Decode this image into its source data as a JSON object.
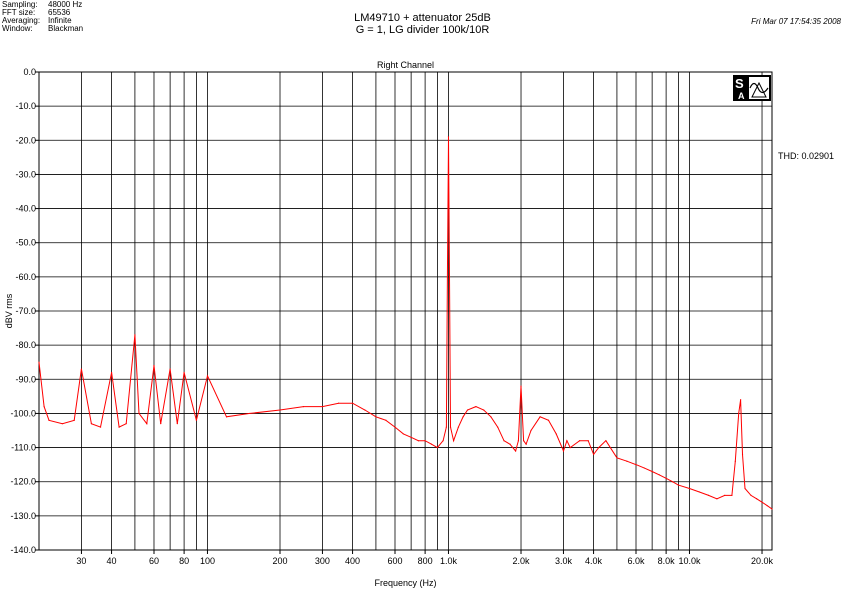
{
  "header": {
    "meta": [
      {
        "label": "Sampling:",
        "value": "48000 Hz"
      },
      {
        "label": "FFT size:",
        "value": "65536"
      },
      {
        "label": "Averaging:",
        "value": "Infinite"
      },
      {
        "label": "Window:",
        "value": "Blackman"
      }
    ],
    "title_line1": "LM49710 + attenuator 25dB",
    "title_line2": "G = 1, LG divider 100k/10R",
    "datetime": "Fri Mar 07 17:54:35 2008"
  },
  "thd_label": "THD: 0.02901",
  "logo": {
    "icon": "sa-logo-icon",
    "letters": "SA"
  },
  "colors": {
    "trace": "#ff0000",
    "grid": "#000000",
    "background": "#ffffff"
  },
  "chart_data": {
    "type": "line",
    "title": "Right Channel",
    "xlabel": "Frequency (Hz)",
    "ylabel": "dBV rms",
    "x_scale": "log",
    "xlim": [
      20,
      22000
    ],
    "ylim": [
      -140,
      0
    ],
    "grid": true,
    "y_ticks": [
      0,
      -10,
      -20,
      -30,
      -40,
      -50,
      -60,
      -70,
      -80,
      -90,
      -100,
      -110,
      -120,
      -130,
      -140
    ],
    "y_tick_labels": [
      "0.0",
      "-10.0",
      "-20.0",
      "-30.0",
      "-40.0",
      "-50.0",
      "-60.0",
      "-70.0",
      "-80.0",
      "-90.0",
      "-100.0",
      "-110.0",
      "-120.0",
      "-130.0",
      "-140.0"
    ],
    "x_ticks": [
      30,
      40,
      60,
      80,
      100,
      200,
      300,
      400,
      600,
      800,
      1000,
      2000,
      3000,
      4000,
      6000,
      8000,
      10000,
      20000
    ],
    "x_tick_labels": [
      "30",
      "40",
      "60",
      "80",
      "100",
      "200",
      "300",
      "400",
      "600",
      "800",
      "1.0k",
      "2.0k",
      "3.0k",
      "4.0k",
      "6.0k",
      "8.0k",
      "10.0k",
      "20.0k"
    ],
    "x_minor_gridlines": [
      50,
      70,
      90,
      500,
      700,
      900,
      5000,
      7000,
      9000
    ],
    "series": [
      {
        "x": [
          20,
          21,
          22,
          25,
          28,
          30,
          33,
          36,
          40,
          43,
          46,
          50,
          52,
          56,
          60,
          64,
          70,
          75,
          80,
          90,
          100,
          120,
          150,
          200,
          250,
          300,
          350,
          400,
          450,
          500,
          550,
          600,
          650,
          700,
          750,
          800,
          850,
          900,
          950,
          980,
          990,
          1000,
          1010,
          1020,
          1050,
          1100,
          1150,
          1200,
          1300,
          1400,
          1500,
          1600,
          1700,
          1800,
          1900,
          1950,
          2000,
          2050,
          2100,
          2200,
          2400,
          2600,
          2800,
          3000,
          3100,
          3200,
          3500,
          3800,
          4000,
          4200,
          4500,
          5000,
          5500,
          6000,
          6500,
          7000,
          7500,
          8000,
          8500,
          9000,
          10000,
          11000,
          12000,
          13000,
          14000,
          15000,
          15500,
          16000,
          16300,
          16600,
          17000,
          18000,
          19000,
          20000,
          21000,
          22000
        ],
        "y": [
          -85,
          -98,
          -102,
          -103,
          -102,
          -87,
          -103,
          -104,
          -88,
          -104,
          -103,
          -77,
          -100,
          -103,
          -86,
          -103,
          -87,
          -103,
          -88,
          -102,
          -89,
          -101,
          -100,
          -99,
          -98,
          -98,
          -97,
          -97,
          -99,
          -101,
          -102,
          -104,
          -106,
          -107,
          -108,
          -108,
          -109,
          -110,
          -108,
          -104,
          -60,
          -19,
          -60,
          -104,
          -108,
          -104,
          -101,
          -99,
          -98,
          -99,
          -101,
          -104,
          -108,
          -109,
          -111,
          -108,
          -92,
          -108,
          -109,
          -105,
          -101,
          -102,
          -106,
          -111,
          -108,
          -110,
          -108,
          -108,
          -112,
          -110,
          -108,
          -113,
          -114,
          -115,
          -116,
          -117,
          -118,
          -119,
          -120,
          -121,
          -122,
          -123,
          -124,
          -125,
          -124,
          -124,
          -114,
          -100,
          -96,
          -112,
          -122,
          -124,
          -125,
          -126,
          -127,
          -128
        ]
      }
    ],
    "annotations": [
      "THD: 0.02901"
    ]
  }
}
